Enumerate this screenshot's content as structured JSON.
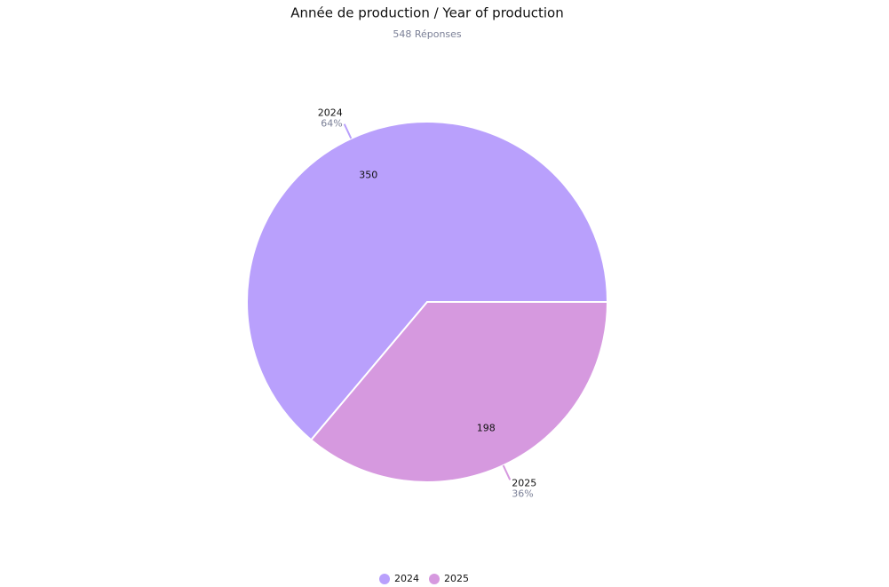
{
  "chart_data": {
    "type": "pie",
    "title": "Année de production / Year of production",
    "subtitle": "548 Réponses",
    "categories": [
      "2024",
      "2025"
    ],
    "values": [
      350,
      198
    ],
    "percent_labels": [
      "64%",
      "36%"
    ],
    "colors": [
      "#b9a0fc",
      "#d699df"
    ],
    "legend": "bottom"
  }
}
